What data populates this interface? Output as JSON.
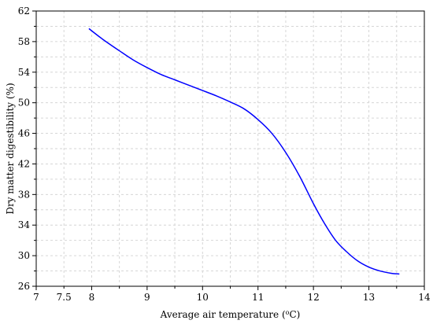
{
  "chart_data": {
    "type": "line",
    "title": "",
    "xlabel": "Average air temperature (",
    "xlabel_sup": "o",
    "xlabel_suffix": "C)",
    "ylabel": "Dry matter digestibility (%)",
    "xlim": [
      7,
      14
    ],
    "ylim": [
      26,
      62
    ],
    "xticks": [
      7,
      7.5,
      8,
      9,
      10,
      11,
      12,
      13,
      14
    ],
    "xticks_minor": [
      7.5,
      8.5,
      9.5,
      10.5,
      11.5,
      12.5,
      13.5
    ],
    "xtick_labels": [
      "7",
      "7.5",
      "8",
      "9",
      "10",
      "11",
      "12",
      "13",
      "14"
    ],
    "yticks": [
      26,
      30,
      34,
      38,
      42,
      46,
      50,
      54,
      58,
      62
    ],
    "ytick_labels": [
      "26",
      "30",
      "34",
      "38",
      "42",
      "46",
      "50",
      "54",
      "58",
      "62"
    ],
    "grid": true,
    "legend": "none",
    "series": [
      {
        "color": "#0000ff",
        "x": [
          7.95,
          8.2,
          8.5,
          8.75,
          9.0,
          9.25,
          9.5,
          9.75,
          10.0,
          10.25,
          10.5,
          10.75,
          11.0,
          11.25,
          11.5,
          11.75,
          12.0,
          12.2,
          12.4,
          12.6,
          12.8,
          13.0,
          13.2,
          13.4,
          13.55
        ],
        "y": [
          59.7,
          58.3,
          56.8,
          55.6,
          54.6,
          53.7,
          53.0,
          52.3,
          51.6,
          50.9,
          50.1,
          49.2,
          47.8,
          46.0,
          43.5,
          40.4,
          36.8,
          34.2,
          32.0,
          30.5,
          29.3,
          28.5,
          28.0,
          27.7,
          27.6
        ]
      }
    ]
  }
}
